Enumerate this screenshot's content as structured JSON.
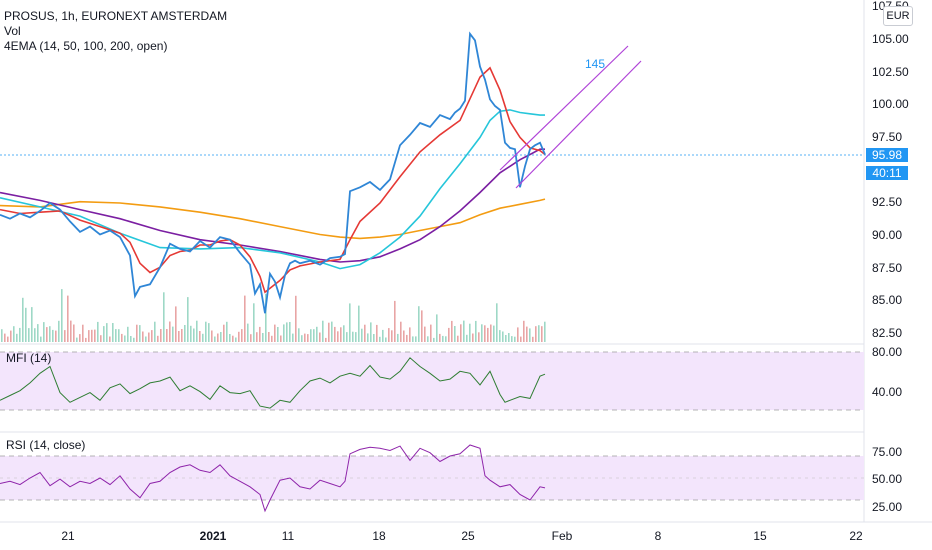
{
  "header": {
    "symbol_line": "PROSUS, 1h, EURONEXT AMSTERDAM",
    "vol_label": "Vol",
    "ema_label": "4EMA (14, 50, 100, 200, open)"
  },
  "currency_button": "EUR",
  "last_price": "95.98",
  "countdown": "40:11",
  "annotation": "145",
  "colors": {
    "price": "#2f86d6",
    "ema14": "#e53935",
    "ema50": "#26c6da",
    "ema100": "#7b1fa2",
    "ema200": "#f39c12",
    "channel": "#b044d8",
    "mfi": "#2e7d32",
    "rsi": "#8e24aa",
    "band": "#f3e5fc"
  },
  "chart_data": [
    {
      "type": "line",
      "title": "PROSUS, 1h, EURONEXT AMSTERDAM",
      "x_ticks": [
        "21",
        "2021",
        "11",
        "18",
        "25",
        "Feb",
        "8",
        "15",
        "22"
      ],
      "y_ticks": [
        "107.50",
        "105.00",
        "102.50",
        "100.00",
        "97.50",
        "92.50",
        "90.00",
        "87.50",
        "85.00",
        "82.50"
      ],
      "ylim": [
        81.8,
        107.5
      ],
      "last_value": 95.98,
      "series": [
        {
          "name": "Price",
          "color": "#2f86d6",
          "x": [
            0,
            10,
            20,
            30,
            40,
            50,
            60,
            70,
            80,
            90,
            100,
            110,
            120,
            130,
            135,
            140,
            150,
            160,
            170,
            180,
            190,
            200,
            210,
            220,
            230,
            240,
            250,
            255,
            260,
            265,
            270,
            275,
            280,
            285,
            290,
            295,
            300,
            310,
            320,
            330,
            340,
            345,
            350,
            360,
            370,
            380,
            390,
            400,
            410,
            420,
            430,
            440,
            450,
            455,
            460,
            465,
            470,
            475,
            480,
            485,
            490,
            495,
            500,
            505,
            510,
            515,
            520,
            525,
            530,
            535,
            540,
            545
          ],
          "values": [
            91.5,
            91.2,
            91.6,
            91.3,
            91.8,
            92.4,
            91.9,
            91.0,
            90.2,
            90.6,
            90.0,
            90.3,
            89.8,
            88.4,
            85.3,
            86.0,
            86.2,
            87.5,
            89.3,
            88.9,
            88.7,
            89.5,
            89.0,
            89.8,
            89.6,
            88.6,
            87.7,
            85.5,
            86.2,
            84.0,
            87.0,
            86.4,
            85.2,
            86.9,
            87.8,
            88.0,
            87.8,
            88.0,
            87.7,
            88.2,
            88.3,
            88.5,
            93.3,
            93.6,
            94.0,
            93.4,
            94.2,
            96.8,
            97.6,
            98.5,
            98.2,
            99.1,
            98.8,
            99.3,
            99.6,
            100.2,
            105.3,
            104.8,
            102.8,
            101.8,
            100.3,
            99.8,
            99.5,
            97.0,
            96.6,
            96.5,
            93.6,
            95.2,
            96.5,
            96.8,
            97.0,
            96.1
          ]
        },
        {
          "name": "EMA 14",
          "color": "#e53935",
          "x": [
            0,
            20,
            40,
            60,
            80,
            100,
            120,
            130,
            140,
            150,
            160,
            170,
            180,
            190,
            200,
            210,
            220,
            230,
            240,
            250,
            260,
            265,
            270,
            280,
            290,
            300,
            320,
            340,
            350,
            360,
            380,
            400,
            420,
            440,
            460,
            480,
            490,
            500,
            510,
            520,
            530,
            540,
            545
          ],
          "values": [
            91.9,
            91.6,
            91.7,
            91.8,
            91.1,
            90.6,
            90.1,
            89.4,
            87.8,
            87.1,
            87.5,
            88.4,
            88.7,
            88.8,
            89.2,
            89.2,
            89.5,
            89.6,
            89.2,
            88.3,
            86.8,
            85.6,
            85.9,
            86.5,
            87.3,
            87.6,
            87.9,
            88.1,
            89.6,
            91.0,
            92.4,
            94.4,
            96.3,
            97.6,
            98.7,
            102.0,
            102.7,
            101.0,
            98.6,
            97.4,
            96.6,
            96.4,
            96.1
          ]
        },
        {
          "name": "EMA 50",
          "color": "#26c6da",
          "x": [
            0,
            40,
            80,
            120,
            160,
            200,
            240,
            280,
            320,
            340,
            360,
            380,
            400,
            420,
            440,
            460,
            480,
            490,
            500,
            510,
            520,
            530,
            540,
            545
          ],
          "values": [
            92.8,
            92.1,
            91.4,
            90.1,
            89.0,
            88.9,
            89.0,
            88.6,
            87.9,
            87.4,
            87.7,
            88.6,
            89.8,
            91.4,
            93.5,
            95.4,
            97.4,
            98.7,
            99.4,
            99.5,
            99.3,
            99.2,
            99.1,
            99.1
          ]
        },
        {
          "name": "EMA 100",
          "color": "#7b1fa2",
          "x": [
            0,
            40,
            80,
            120,
            160,
            200,
            240,
            280,
            320,
            340,
            360,
            380,
            400,
            420,
            440,
            460,
            480,
            500,
            510,
            520,
            530,
            540,
            545
          ],
          "values": [
            93.2,
            92.6,
            91.9,
            91.2,
            90.3,
            89.6,
            89.2,
            88.7,
            88.1,
            87.9,
            88.0,
            88.3,
            88.9,
            89.6,
            90.6,
            91.8,
            93.2,
            94.7,
            95.2,
            95.7,
            96.1,
            96.5,
            96.5
          ]
        },
        {
          "name": "EMA 200",
          "color": "#f39c12",
          "x": [
            0,
            40,
            80,
            120,
            160,
            200,
            240,
            280,
            320,
            340,
            360,
            380,
            400,
            420,
            440,
            460,
            480,
            500,
            520,
            540,
            545
          ],
          "values": [
            92.2,
            92.1,
            92.5,
            92.4,
            92.1,
            91.7,
            91.2,
            90.6,
            90.0,
            89.8,
            89.7,
            89.8,
            90.0,
            90.3,
            90.6,
            90.9,
            91.5,
            92.0,
            92.3,
            92.6,
            92.7
          ]
        }
      ]
    },
    {
      "type": "line",
      "title": "MFI (14)",
      "y_ticks": [
        "80.00",
        "40.00"
      ],
      "ylim": [
        10,
        90
      ],
      "bands": [
        20,
        80
      ],
      "series": [
        {
          "name": "MFI",
          "color": "#2e7d32",
          "x": [
            0,
            10,
            20,
            30,
            40,
            50,
            60,
            70,
            80,
            90,
            100,
            110,
            120,
            130,
            140,
            150,
            160,
            170,
            180,
            190,
            200,
            210,
            220,
            230,
            240,
            250,
            260,
            270,
            280,
            290,
            300,
            310,
            320,
            330,
            340,
            350,
            360,
            370,
            380,
            390,
            400,
            410,
            420,
            430,
            440,
            450,
            460,
            470,
            480,
            490,
            500,
            505,
            510,
            520,
            530,
            540,
            545
          ],
          "values": [
            30,
            35,
            40,
            48,
            58,
            65,
            38,
            28,
            33,
            38,
            30,
            43,
            47,
            37,
            42,
            48,
            50,
            54,
            40,
            45,
            39,
            31,
            45,
            38,
            37,
            40,
            24,
            22,
            30,
            28,
            40,
            50,
            53,
            48,
            55,
            58,
            55,
            66,
            54,
            52,
            60,
            74,
            65,
            58,
            50,
            52,
            60,
            58,
            46,
            60,
            36,
            28,
            30,
            34,
            32,
            55,
            57
          ]
        },
        {
          "name": "RSI",
          "color": "#8e24aa",
          "x": [
            0,
            10,
            20,
            30,
            40,
            50,
            60,
            70,
            80,
            90,
            100,
            110,
            120,
            130,
            140,
            150,
            160,
            170,
            180,
            190,
            200,
            210,
            220,
            230,
            240,
            250,
            260,
            265,
            270,
            280,
            290,
            300,
            310,
            320,
            330,
            340,
            345,
            350,
            360,
            370,
            380,
            390,
            400,
            410,
            420,
            430,
            440,
            450,
            460,
            470,
            480,
            485,
            490,
            500,
            510,
            520,
            530,
            540,
            545
          ],
          "values": [
            45,
            47,
            44,
            50,
            55,
            43,
            49,
            42,
            47,
            45,
            50,
            44,
            52,
            40,
            32,
            45,
            47,
            55,
            60,
            62,
            57,
            55,
            62,
            52,
            47,
            42,
            35,
            20,
            30,
            48,
            50,
            42,
            40,
            48,
            45,
            42,
            47,
            72,
            76,
            78,
            77,
            75,
            79,
            66,
            77,
            73,
            65,
            70,
            72,
            80,
            77,
            52,
            48,
            42,
            44,
            35,
            30,
            42,
            41
          ]
        }
      ]
    },
    {
      "type": "line",
      "title": "RSI (14, close)",
      "y_ticks": [
        "75.00",
        "50.00",
        "25.00"
      ],
      "ylim": [
        15,
        85
      ],
      "bands": [
        30,
        70
      ]
    }
  ]
}
